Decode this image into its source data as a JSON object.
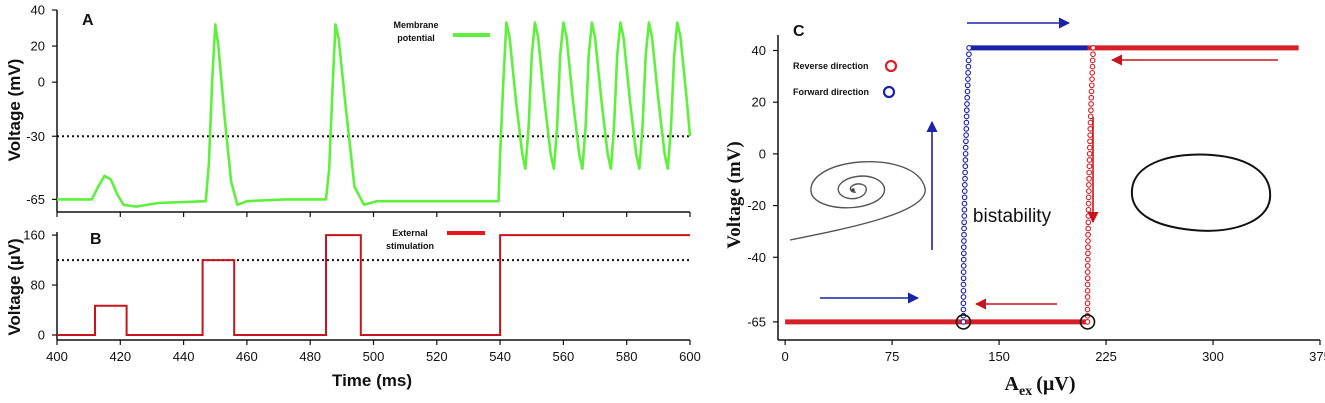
{
  "chart_data": [
    {
      "panel": "A",
      "type": "line",
      "ylabel": "Voltage (mV)",
      "xlim": [
        400,
        600
      ],
      "ylim": [
        -72,
        40
      ],
      "yticks": [
        40,
        20,
        0,
        -30,
        -65
      ],
      "threshold": -30,
      "legend": {
        "label_line1": "Membrane",
        "label_line2": "potential",
        "color": "#5ef03c"
      },
      "series": [
        {
          "name": "Membrane potential",
          "color": "#5ef03c",
          "points": [
            [
              400,
              -65
            ],
            [
              411,
              -65
            ],
            [
              413,
              -58
            ],
            [
              415,
              -52
            ],
            [
              417,
              -54
            ],
            [
              419,
              -62
            ],
            [
              421,
              -68
            ],
            [
              425,
              -69
            ],
            [
              432,
              -67
            ],
            [
              447,
              -66
            ],
            [
              448,
              -45
            ],
            [
              449,
              0
            ],
            [
              450,
              32
            ],
            [
              451,
              20
            ],
            [
              453,
              -20
            ],
            [
              455,
              -55
            ],
            [
              457,
              -68
            ],
            [
              460,
              -66
            ],
            [
              472,
              -65
            ],
            [
              485,
              -65
            ],
            [
              486,
              -48
            ],
            [
              487,
              -5
            ],
            [
              488,
              32
            ],
            [
              489,
              24
            ],
            [
              491,
              -10
            ],
            [
              494,
              -58
            ],
            [
              497,
              -68
            ],
            [
              501,
              -66
            ],
            [
              538,
              -66
            ],
            [
              539.5,
              -66
            ],
            [
              540,
              -40
            ],
            [
              541,
              0
            ],
            [
              542,
              33
            ],
            [
              543,
              25
            ],
            [
              545,
              -10
            ],
            [
              547,
              -40
            ],
            [
              548,
              -48
            ],
            [
              549,
              -25
            ],
            [
              550,
              15
            ],
            [
              551,
              33
            ],
            [
              552,
              25
            ],
            [
              554,
              -10
            ],
            [
              556,
              -40
            ],
            [
              557,
              -48
            ],
            [
              558,
              -25
            ],
            [
              559,
              15
            ],
            [
              560,
              33
            ],
            [
              561,
              25
            ],
            [
              563,
              -10
            ],
            [
              565,
              -40
            ],
            [
              566,
              -48
            ],
            [
              567,
              -25
            ],
            [
              568,
              15
            ],
            [
              569,
              33
            ],
            [
              570,
              25
            ],
            [
              572,
              -10
            ],
            [
              574,
              -40
            ],
            [
              575,
              -48
            ],
            [
              576,
              -25
            ],
            [
              577,
              15
            ],
            [
              578,
              33
            ],
            [
              579,
              25
            ],
            [
              581,
              -10
            ],
            [
              583,
              -40
            ],
            [
              584,
              -48
            ],
            [
              585,
              -25
            ],
            [
              586,
              15
            ],
            [
              587,
              33
            ],
            [
              588,
              25
            ],
            [
              590,
              -10
            ],
            [
              592,
              -40
            ],
            [
              593,
              -48
            ],
            [
              594,
              -25
            ],
            [
              595,
              15
            ],
            [
              596,
              33
            ],
            [
              597,
              25
            ],
            [
              599,
              -10
            ],
            [
              600,
              -30
            ]
          ]
        }
      ]
    },
    {
      "panel": "B",
      "type": "line",
      "ylabel": "Voltage  (µV)",
      "xlabel": "Time (ms)",
      "xlim": [
        400,
        600
      ],
      "ylim": [
        -8,
        165
      ],
      "yticks": [
        160,
        80,
        0
      ],
      "xticks": [
        400,
        420,
        440,
        460,
        480,
        500,
        520,
        540,
        560,
        580,
        600
      ],
      "threshold": 120,
      "legend": {
        "label_line1": "External",
        "label_line2": "stimulation",
        "color": "#e8141c"
      },
      "series": [
        {
          "name": "External stimulation",
          "color": "#c8141c",
          "points": [
            [
              400,
              0
            ],
            [
              412,
              0
            ],
            [
              412,
              47
            ],
            [
              422,
              47
            ],
            [
              422,
              0
            ],
            [
              446,
              0
            ],
            [
              446,
              120
            ],
            [
              456,
              120
            ],
            [
              456,
              0
            ],
            [
              485,
              0
            ],
            [
              485,
              160
            ],
            [
              496,
              160
            ],
            [
              496,
              0
            ],
            [
              540,
              0
            ],
            [
              540,
              160
            ],
            [
              600,
              160
            ]
          ]
        }
      ]
    },
    {
      "panel": "C",
      "type": "scatter",
      "xlabel_main": "A",
      "xlabel_sub": "ex",
      "xlabel_unit": "(µV)",
      "ylabel": "Voltage (mV)",
      "xlim": [
        -5,
        375
      ],
      "ylim": [
        -72,
        46
      ],
      "xticks": [
        0,
        75,
        150,
        225,
        300,
        375
      ],
      "yticks": [
        40,
        20,
        0,
        -20,
        -40,
        -65
      ],
      "annotation": "bistability",
      "legend": [
        {
          "label": "Reverse direction",
          "color": "#d42026"
        },
        {
          "label": "Forward direction",
          "color": "#1a23a8"
        }
      ],
      "series": [
        {
          "name": "Reverse direction",
          "color": "#d42026",
          "low_branch": {
            "x_from": 0,
            "x_to": 212,
            "y": -65
          },
          "high_branch": {
            "x_from": 212,
            "x_to": 360,
            "y": 41
          },
          "transition": {
            "x": 212,
            "y_from": -65,
            "y_to": 41
          }
        },
        {
          "name": "Forward direction",
          "color": "#1a23a8",
          "low_branch": {
            "x_from": 0,
            "x_to": 125,
            "y": -65
          },
          "high_branch": {
            "x_from": 129,
            "x_to": 212,
            "y": 41
          },
          "transition": {
            "x": 125,
            "y_from": -65,
            "y_to": 41
          }
        }
      ],
      "bifurcation_points": [
        [
          125,
          -65
        ],
        [
          212,
          -65
        ]
      ]
    }
  ]
}
